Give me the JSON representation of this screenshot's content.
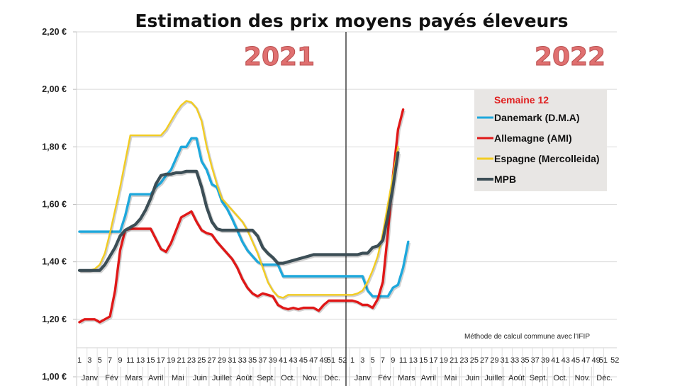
{
  "chart_data": {
    "type": "line",
    "title": "Estimation des prix moyens payés éleveurs",
    "xlabel": "",
    "ylabel": "",
    "ylim": [
      1.0,
      2.2
    ],
    "yticks": [
      1.0,
      1.2,
      1.4,
      1.6,
      1.8,
      2.0,
      2.2
    ],
    "ytick_labels": [
      "1,00 €",
      "1,20 €",
      "1,40 €",
      "1,60 €",
      "1,80 €",
      "2,00 €",
      "2,20 €"
    ],
    "grid": true,
    "years": [
      "2021",
      "2022"
    ],
    "week_labels": [
      "1",
      "3",
      "5",
      "7",
      "9",
      "11",
      "13",
      "15",
      "17",
      "19",
      "21",
      "23",
      "25",
      "27",
      "29",
      "31",
      "33",
      "35",
      "37",
      "39",
      "41",
      "43",
      "45",
      "47",
      "49",
      "51",
      "52"
    ],
    "month_labels": [
      "Janv",
      "Fév",
      "Mars",
      "Avril",
      "Mai",
      "Juin",
      "Juillet",
      "Août",
      "Sept.",
      "Oct.",
      "Nov.",
      "Déc."
    ],
    "legend": {
      "title": "Semaine 12",
      "placement": "right"
    },
    "note": "Méthode de calcul commune avec l'IFIP",
    "x_description": "Continuous week index: 1-52 = 2021, 53-64 = 2022 weeks 1-12",
    "series": [
      {
        "name": "Danemark (D.M.A)",
        "color": "#1ea8dc",
        "points": [
          [
            1,
            1.505
          ],
          [
            2,
            1.505
          ],
          [
            3,
            1.505
          ],
          [
            4,
            1.505
          ],
          [
            5,
            1.505
          ],
          [
            6,
            1.505
          ],
          [
            7,
            1.505
          ],
          [
            8,
            1.505
          ],
          [
            9,
            1.505
          ],
          [
            10,
            1.56
          ],
          [
            11,
            1.635
          ],
          [
            12,
            1.635
          ],
          [
            13,
            1.635
          ],
          [
            14,
            1.635
          ],
          [
            15,
            1.635
          ],
          [
            16,
            1.66
          ],
          [
            17,
            1.675
          ],
          [
            18,
            1.7
          ],
          [
            19,
            1.72
          ],
          [
            20,
            1.76
          ],
          [
            21,
            1.8
          ],
          [
            22,
            1.8
          ],
          [
            23,
            1.83
          ],
          [
            24,
            1.83
          ],
          [
            25,
            1.75
          ],
          [
            26,
            1.72
          ],
          [
            27,
            1.67
          ],
          [
            28,
            1.66
          ],
          [
            29,
            1.61
          ],
          [
            30,
            1.585
          ],
          [
            31,
            1.55
          ],
          [
            32,
            1.51
          ],
          [
            33,
            1.47
          ],
          [
            34,
            1.44
          ],
          [
            35,
            1.42
          ],
          [
            36,
            1.4
          ],
          [
            37,
            1.39
          ],
          [
            38,
            1.39
          ],
          [
            39,
            1.39
          ],
          [
            40,
            1.39
          ],
          [
            41,
            1.35
          ],
          [
            42,
            1.35
          ],
          [
            43,
            1.35
          ],
          [
            44,
            1.35
          ],
          [
            45,
            1.35
          ],
          [
            46,
            1.35
          ],
          [
            47,
            1.35
          ],
          [
            48,
            1.35
          ],
          [
            49,
            1.35
          ],
          [
            50,
            1.35
          ],
          [
            51,
            1.35
          ],
          [
            52,
            1.35
          ],
          [
            53,
            1.35
          ],
          [
            54,
            1.35
          ],
          [
            55,
            1.35
          ],
          [
            56,
            1.3
          ],
          [
            57,
            1.28
          ],
          [
            58,
            1.28
          ],
          [
            59,
            1.28
          ],
          [
            60,
            1.28
          ],
          [
            61,
            1.31
          ],
          [
            62,
            1.32
          ],
          [
            63,
            1.38
          ],
          [
            64,
            1.47
          ]
        ]
      },
      {
        "name": "Allemagne (AMI)",
        "color": "#e01818",
        "points": [
          [
            1,
            1.19
          ],
          [
            2,
            1.2
          ],
          [
            3,
            1.2
          ],
          [
            4,
            1.2
          ],
          [
            5,
            1.19
          ],
          [
            6,
            1.2
          ],
          [
            7,
            1.21
          ],
          [
            8,
            1.3
          ],
          [
            9,
            1.44
          ],
          [
            10,
            1.51
          ],
          [
            11,
            1.515
          ],
          [
            12,
            1.515
          ],
          [
            13,
            1.515
          ],
          [
            14,
            1.515
          ],
          [
            15,
            1.515
          ],
          [
            16,
            1.48
          ],
          [
            17,
            1.445
          ],
          [
            18,
            1.435
          ],
          [
            19,
            1.465
          ],
          [
            20,
            1.51
          ],
          [
            21,
            1.555
          ],
          [
            22,
            1.565
          ],
          [
            23,
            1.575
          ],
          [
            24,
            1.54
          ],
          [
            25,
            1.51
          ],
          [
            26,
            1.5
          ],
          [
            27,
            1.495
          ],
          [
            28,
            1.47
          ],
          [
            29,
            1.45
          ],
          [
            30,
            1.43
          ],
          [
            31,
            1.41
          ],
          [
            32,
            1.38
          ],
          [
            33,
            1.34
          ],
          [
            34,
            1.31
          ],
          [
            35,
            1.29
          ],
          [
            36,
            1.28
          ],
          [
            37,
            1.29
          ],
          [
            38,
            1.285
          ],
          [
            39,
            1.28
          ],
          [
            40,
            1.25
          ],
          [
            41,
            1.24
          ],
          [
            42,
            1.235
          ],
          [
            43,
            1.24
          ],
          [
            44,
            1.235
          ],
          [
            45,
            1.24
          ],
          [
            46,
            1.24
          ],
          [
            47,
            1.24
          ],
          [
            48,
            1.23
          ],
          [
            49,
            1.25
          ],
          [
            50,
            1.265
          ],
          [
            51,
            1.265
          ],
          [
            52,
            1.265
          ],
          [
            53,
            1.265
          ],
          [
            54,
            1.26
          ],
          [
            55,
            1.25
          ],
          [
            56,
            1.25
          ],
          [
            57,
            1.24
          ],
          [
            58,
            1.27
          ],
          [
            59,
            1.33
          ],
          [
            60,
            1.5
          ],
          [
            61,
            1.7
          ],
          [
            62,
            1.86
          ],
          [
            63,
            1.93
          ]
        ]
      },
      {
        "name": "Espagne (Mercolleida)",
        "color": "#f2cc22",
        "points": [
          [
            1,
            1.37
          ],
          [
            2,
            1.37
          ],
          [
            3,
            1.37
          ],
          [
            4,
            1.375
          ],
          [
            5,
            1.39
          ],
          [
            6,
            1.43
          ],
          [
            7,
            1.5
          ],
          [
            8,
            1.58
          ],
          [
            9,
            1.66
          ],
          [
            10,
            1.75
          ],
          [
            11,
            1.84
          ],
          [
            12,
            1.84
          ],
          [
            13,
            1.84
          ],
          [
            14,
            1.84
          ],
          [
            15,
            1.84
          ],
          [
            16,
            1.84
          ],
          [
            17,
            1.84
          ],
          [
            18,
            1.86
          ],
          [
            19,
            1.89
          ],
          [
            20,
            1.92
          ],
          [
            21,
            1.945
          ],
          [
            22,
            1.96
          ],
          [
            23,
            1.955
          ],
          [
            24,
            1.935
          ],
          [
            25,
            1.89
          ],
          [
            26,
            1.8
          ],
          [
            27,
            1.73
          ],
          [
            28,
            1.67
          ],
          [
            29,
            1.62
          ],
          [
            30,
            1.6
          ],
          [
            31,
            1.58
          ],
          [
            32,
            1.56
          ],
          [
            33,
            1.54
          ],
          [
            34,
            1.51
          ],
          [
            35,
            1.47
          ],
          [
            36,
            1.43
          ],
          [
            37,
            1.38
          ],
          [
            38,
            1.33
          ],
          [
            39,
            1.3
          ],
          [
            40,
            1.28
          ],
          [
            41,
            1.275
          ],
          [
            42,
            1.285
          ],
          [
            43,
            1.285
          ],
          [
            44,
            1.285
          ],
          [
            45,
            1.285
          ],
          [
            46,
            1.285
          ],
          [
            47,
            1.285
          ],
          [
            48,
            1.285
          ],
          [
            49,
            1.285
          ],
          [
            50,
            1.285
          ],
          [
            51,
            1.285
          ],
          [
            52,
            1.285
          ],
          [
            53,
            1.285
          ],
          [
            54,
            1.29
          ],
          [
            55,
            1.3
          ],
          [
            56,
            1.33
          ],
          [
            57,
            1.37
          ],
          [
            58,
            1.42
          ],
          [
            59,
            1.5
          ],
          [
            60,
            1.6
          ],
          [
            61,
            1.7
          ],
          [
            62,
            1.8
          ]
        ]
      },
      {
        "name": "MPB",
        "color": "#3c4e56",
        "points": [
          [
            1,
            1.37
          ],
          [
            2,
            1.37
          ],
          [
            3,
            1.37
          ],
          [
            4,
            1.37
          ],
          [
            5,
            1.37
          ],
          [
            6,
            1.39
          ],
          [
            7,
            1.42
          ],
          [
            8,
            1.45
          ],
          [
            9,
            1.49
          ],
          [
            10,
            1.51
          ],
          [
            11,
            1.52
          ],
          [
            12,
            1.53
          ],
          [
            13,
            1.55
          ],
          [
            14,
            1.58
          ],
          [
            15,
            1.62
          ],
          [
            16,
            1.67
          ],
          [
            17,
            1.7
          ],
          [
            18,
            1.705
          ],
          [
            19,
            1.705
          ],
          [
            20,
            1.71
          ],
          [
            21,
            1.71
          ],
          [
            22,
            1.715
          ],
          [
            23,
            1.715
          ],
          [
            24,
            1.715
          ],
          [
            25,
            1.66
          ],
          [
            26,
            1.59
          ],
          [
            27,
            1.54
          ],
          [
            28,
            1.515
          ],
          [
            29,
            1.51
          ],
          [
            30,
            1.51
          ],
          [
            31,
            1.51
          ],
          [
            32,
            1.51
          ],
          [
            33,
            1.51
          ],
          [
            34,
            1.51
          ],
          [
            35,
            1.51
          ],
          [
            36,
            1.49
          ],
          [
            37,
            1.45
          ],
          [
            38,
            1.43
          ],
          [
            39,
            1.415
          ],
          [
            40,
            1.395
          ],
          [
            41,
            1.395
          ],
          [
            42,
            1.4
          ],
          [
            43,
            1.405
          ],
          [
            44,
            1.41
          ],
          [
            45,
            1.415
          ],
          [
            46,
            1.42
          ],
          [
            47,
            1.425
          ],
          [
            48,
            1.425
          ],
          [
            49,
            1.425
          ],
          [
            50,
            1.425
          ],
          [
            51,
            1.425
          ],
          [
            52,
            1.425
          ],
          [
            53,
            1.425
          ],
          [
            54,
            1.425
          ],
          [
            55,
            1.43
          ],
          [
            56,
            1.43
          ],
          [
            57,
            1.45
          ],
          [
            58,
            1.455
          ],
          [
            59,
            1.475
          ],
          [
            60,
            1.56
          ],
          [
            61,
            1.66
          ],
          [
            62,
            1.78
          ]
        ]
      }
    ]
  }
}
